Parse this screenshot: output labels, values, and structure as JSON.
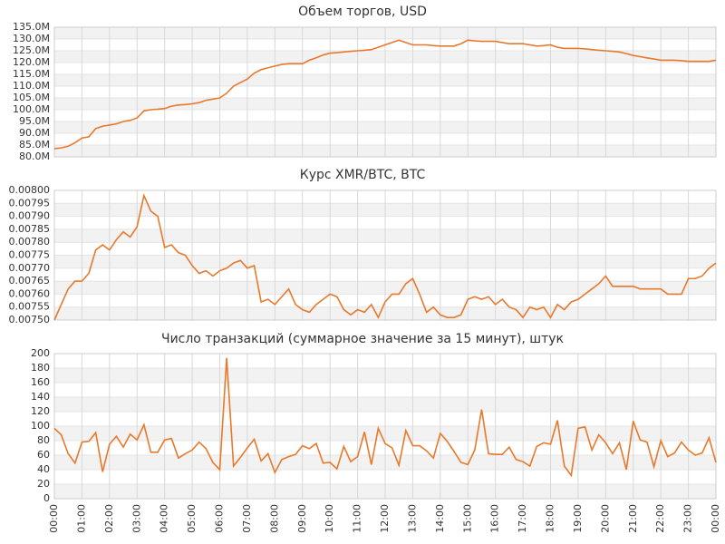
{
  "chart_data": [
    {
      "type": "line",
      "title": "Объем торгов, USD",
      "color": "#e8792b",
      "grid": true,
      "xlim": [
        0,
        96
      ],
      "ylim": [
        80,
        135
      ],
      "yticks": [
        {
          "value": 80,
          "label": "80.0M"
        },
        {
          "value": 85,
          "label": "85.0M"
        },
        {
          "value": 90,
          "label": "90.0M"
        },
        {
          "value": 95,
          "label": "95.0M"
        },
        {
          "value": 100,
          "label": "100.0M"
        },
        {
          "value": 105,
          "label": "105.0M"
        },
        {
          "value": 110,
          "label": "110.0M"
        },
        {
          "value": 115,
          "label": "115.0M"
        },
        {
          "value": 120,
          "label": "120.0M"
        },
        {
          "value": 125,
          "label": "125.0M"
        },
        {
          "value": 130,
          "label": "130.0M"
        },
        {
          "value": 135,
          "label": "135.0M"
        }
      ],
      "values": [
        83.5,
        83.8,
        84.5,
        86,
        88,
        88.5,
        92,
        93,
        93.5,
        94,
        95,
        95.5,
        96.5,
        99.5,
        100,
        100.2,
        100.5,
        101.5,
        102,
        102.2,
        102.5,
        103,
        104,
        104.5,
        105,
        107,
        110,
        111.5,
        113,
        115.5,
        117,
        117.8,
        118.5,
        119.2,
        119.5,
        119.5,
        119.5,
        121,
        122,
        123.2,
        124,
        124.2,
        124.5,
        124.8,
        125,
        125.2,
        125.5,
        126.5,
        127.5,
        128.5,
        129.5,
        128.5,
        127.5,
        127.5,
        127.5,
        127.2,
        127,
        127,
        127,
        128,
        129.5,
        129.2,
        129,
        129,
        129,
        128.5,
        128,
        128,
        128,
        127.5,
        127,
        127.2,
        127.5,
        126.5,
        126,
        126,
        126,
        125.8,
        125.5,
        125.2,
        125,
        124.8,
        124.5,
        123.8,
        123,
        122.5,
        122,
        121.5,
        121,
        121,
        121,
        120.8,
        120.5,
        120.5,
        120.5,
        120.5,
        121
      ]
    },
    {
      "type": "line",
      "title": "Курс XMR/BTC, BTC",
      "color": "#e8792b",
      "grid": true,
      "xlim": [
        0,
        96
      ],
      "ylim": [
        0.0075,
        0.008
      ],
      "yticks": [
        {
          "value": 0.0075,
          "label": "0.00750"
        },
        {
          "value": 0.00755,
          "label": "0.00755"
        },
        {
          "value": 0.0076,
          "label": "0.00760"
        },
        {
          "value": 0.00765,
          "label": "0.00765"
        },
        {
          "value": 0.0077,
          "label": "0.00770"
        },
        {
          "value": 0.00775,
          "label": "0.00775"
        },
        {
          "value": 0.0078,
          "label": "0.00780"
        },
        {
          "value": 0.00785,
          "label": "0.00785"
        },
        {
          "value": 0.0079,
          "label": "0.00790"
        },
        {
          "value": 0.00795,
          "label": "0.00795"
        },
        {
          "value": 0.008,
          "label": "0.00800"
        }
      ],
      "values": [
        0.0075,
        0.00756,
        0.00762,
        0.00765,
        0.00765,
        0.00768,
        0.00777,
        0.00779,
        0.00777,
        0.00781,
        0.00784,
        0.00782,
        0.00786,
        0.00798,
        0.00792,
        0.0079,
        0.00778,
        0.00779,
        0.00776,
        0.00775,
        0.00771,
        0.00768,
        0.00769,
        0.00767,
        0.00769,
        0.0077,
        0.00772,
        0.00773,
        0.0077,
        0.00771,
        0.00757,
        0.00758,
        0.00756,
        0.00759,
        0.00762,
        0.00756,
        0.00754,
        0.00753,
        0.00756,
        0.00758,
        0.0076,
        0.00759,
        0.00754,
        0.00752,
        0.00754,
        0.00753,
        0.00756,
        0.00751,
        0.00757,
        0.0076,
        0.0076,
        0.00764,
        0.00766,
        0.0076,
        0.00753,
        0.00755,
        0.00752,
        0.00751,
        0.00751,
        0.00752,
        0.00758,
        0.00759,
        0.00758,
        0.00759,
        0.00756,
        0.00758,
        0.00755,
        0.00754,
        0.00751,
        0.00755,
        0.00754,
        0.00755,
        0.00751,
        0.00756,
        0.00754,
        0.00757,
        0.00758,
        0.0076,
        0.00762,
        0.00764,
        0.00767,
        0.00763,
        0.00763,
        0.00763,
        0.00763,
        0.00762,
        0.00762,
        0.00762,
        0.00762,
        0.0076,
        0.0076,
        0.0076,
        0.00766,
        0.00766,
        0.00767,
        0.0077,
        0.00772
      ]
    },
    {
      "type": "line",
      "title": "Число транзакций (суммарное значение за 15 минут), штук",
      "color": "#e8792b",
      "grid": true,
      "xlim": [
        0,
        96
      ],
      "xticks": [
        {
          "value": 0,
          "label": "00:00"
        },
        {
          "value": 4,
          "label": "01:00"
        },
        {
          "value": 8,
          "label": "02:00"
        },
        {
          "value": 12,
          "label": "03:00"
        },
        {
          "value": 16,
          "label": "04:00"
        },
        {
          "value": 20,
          "label": "05:00"
        },
        {
          "value": 24,
          "label": "06:00"
        },
        {
          "value": 28,
          "label": "07:00"
        },
        {
          "value": 32,
          "label": "08:00"
        },
        {
          "value": 36,
          "label": "09:00"
        },
        {
          "value": 40,
          "label": "10:00"
        },
        {
          "value": 44,
          "label": "11:00"
        },
        {
          "value": 48,
          "label": "12:00"
        },
        {
          "value": 52,
          "label": "13:00"
        },
        {
          "value": 56,
          "label": "14:00"
        },
        {
          "value": 60,
          "label": "15:00"
        },
        {
          "value": 64,
          "label": "16:00"
        },
        {
          "value": 68,
          "label": "17:00"
        },
        {
          "value": 72,
          "label": "18:00"
        },
        {
          "value": 76,
          "label": "19:00"
        },
        {
          "value": 80,
          "label": "20:00"
        },
        {
          "value": 84,
          "label": "21:00"
        },
        {
          "value": 88,
          "label": "22:00"
        },
        {
          "value": 92,
          "label": "23:00"
        },
        {
          "value": 96,
          "label": "00:00"
        }
      ],
      "ylim": [
        0,
        200
      ],
      "yticks": [
        0,
        20,
        40,
        60,
        80,
        100,
        120,
        140,
        160,
        180,
        200
      ],
      "values": [
        97,
        88,
        62,
        49,
        78,
        79,
        91,
        37,
        75,
        86,
        71,
        89,
        81,
        102,
        64,
        64,
        81,
        83,
        56,
        62,
        67,
        78,
        69,
        50,
        40,
        194,
        45,
        57,
        70,
        82,
        52,
        62,
        36,
        54,
        58,
        61,
        73,
        69,
        76,
        49,
        50,
        41,
        72,
        51,
        58,
        92,
        47,
        97,
        76,
        70,
        46,
        94,
        73,
        73,
        66,
        56,
        90,
        79,
        65,
        50,
        47,
        67,
        123,
        62,
        61,
        61,
        71,
        54,
        51,
        45,
        72,
        77,
        75,
        108,
        45,
        32,
        97,
        99,
        67,
        88,
        77,
        62,
        77,
        40,
        107,
        81,
        78,
        44,
        80,
        58,
        63,
        78,
        67,
        60,
        63,
        84,
        50
      ]
    }
  ]
}
